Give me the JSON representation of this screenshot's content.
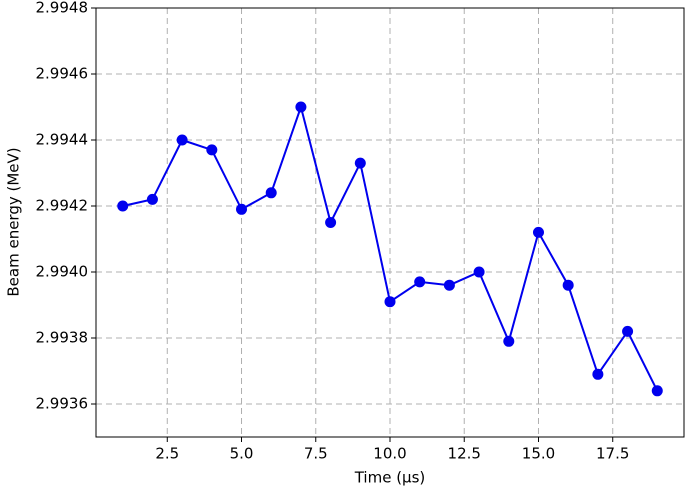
{
  "chart_data": {
    "type": "line",
    "x_label": "Time (μs)",
    "y_label": "Beam energy  (MeV)",
    "x": [
      1,
      2,
      3,
      4,
      5,
      6,
      7,
      8,
      9,
      10,
      11,
      12,
      13,
      14,
      15,
      16,
      17,
      18,
      19
    ],
    "series": [
      {
        "name": "Beam energy",
        "color": "#0000ee",
        "values": [
          2.9942,
          2.99422,
          2.9944,
          2.99437,
          2.99419,
          2.99424,
          2.9945,
          2.99415,
          2.99433,
          2.99391,
          2.99397,
          2.99396,
          2.994,
          2.99379,
          2.99412,
          2.99396,
          2.99369,
          2.99382,
          2.99364
        ]
      }
    ],
    "xlim": [
      0.1,
      19.9
    ],
    "xticks": [
      2.5,
      {
        "value": 5,
        "label": "5.0"
      },
      7.5,
      {
        "value": 10,
        "label": "10.0"
      },
      12.5,
      {
        "value": 15,
        "label": "15.0"
      },
      17.5
    ],
    "ylim": [
      2.9935,
      2.9948
    ],
    "yticks": [
      2.9936,
      2.9938,
      {
        "value": 2.994,
        "label": "2.9940"
      },
      2.9942,
      2.9944,
      2.9946,
      2.9948
    ],
    "grid": true
  }
}
